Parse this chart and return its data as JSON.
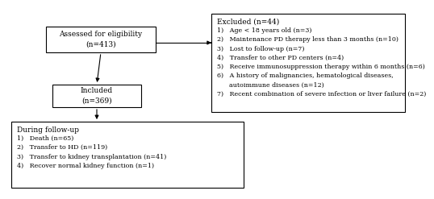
{
  "box_assessed": "Assessed for eligibility\n(n=413)",
  "box_included": "Included\n(n=369)",
  "box_excluded_title": "Excluded (n=44)",
  "box_excluded_items": [
    "1)   Age < 18 years old (n=3)",
    "2)   Maintenance PD therapy less than 3 months (n=10)",
    "3)   Lost to follow-up (n=7)",
    "4)   Transfer to other PD centers (n=4)",
    "5)   Receive immunosuppression therapy within 6 months (n=6)",
    "6)   A history of malignancies, hematological diseases,\n      autoimmune diseases (n=12)",
    "7)   Recent combination of severe infection or liver failure (n=2)"
  ],
  "box_followup_title": "During follow-up",
  "box_followup_items": [
    "1)   Death (n=65)",
    "2)   Transfer to HD (n=119)",
    "3)   Transfer to kidney transplantation (n=41)",
    "4)   Recover normal kidney function (n=1)"
  ],
  "bg_color": "#ffffff",
  "box_edge_color": "#000000",
  "text_color": "#000000",
  "fontsize": 6.5,
  "fontfamily": "DejaVu Serif"
}
